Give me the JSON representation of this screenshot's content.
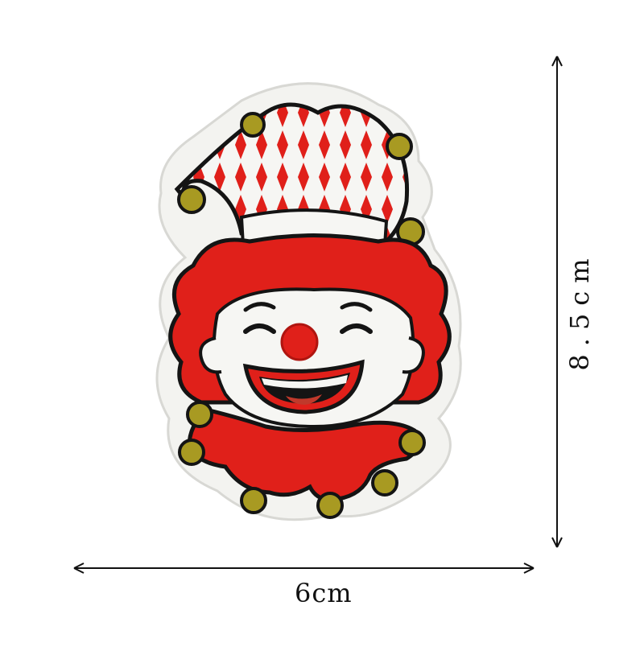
{
  "dimensions": {
    "width_label": "6cm",
    "height_label": "8.5cm"
  },
  "product": {
    "subject": "clown-embroidered-patch",
    "colors": {
      "red": "#e0201a",
      "white": "#f6f6f3",
      "outline": "#141414",
      "bells": "#a89a22",
      "background": "#ffffff"
    }
  }
}
